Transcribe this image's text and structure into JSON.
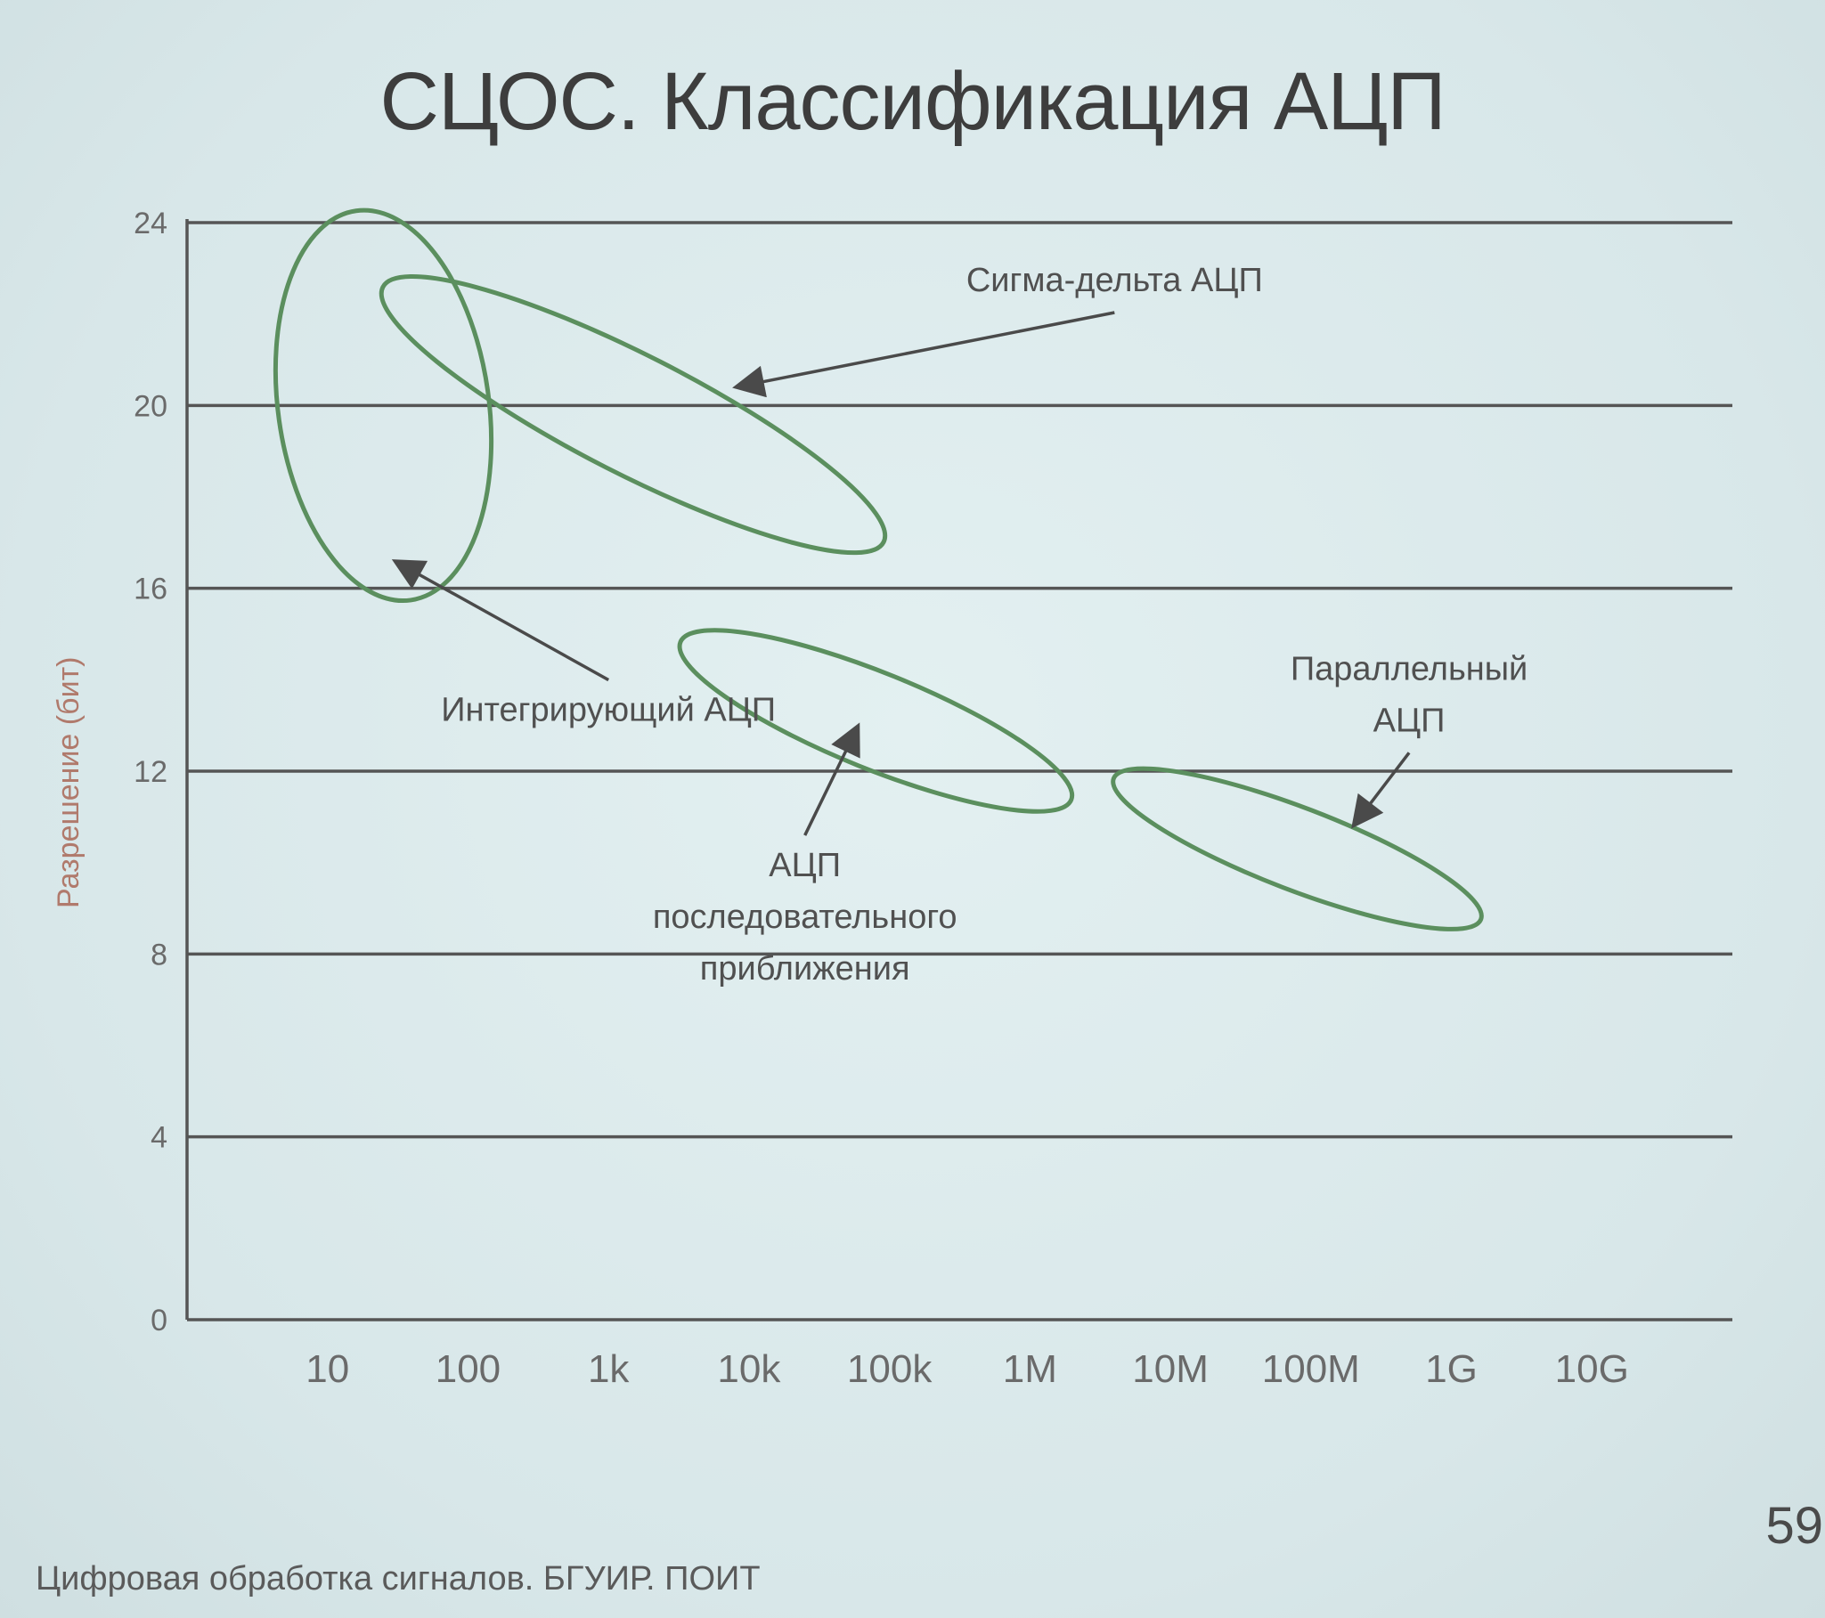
{
  "slide": {
    "title": "СЦОС. Классификация АЦП",
    "footer": "Цифровая обработка сигналов. БГУИР. ПОИТ",
    "page_number": "59"
  },
  "chart_data": {
    "type": "scatter",
    "title": "",
    "xlabel": "",
    "ylabel": "Разрешение (бит)",
    "x_scale": "log",
    "x_ticks": [
      "10",
      "100",
      "1k",
      "10k",
      "100k",
      "1M",
      "10M",
      "100M",
      "1G",
      "10G"
    ],
    "x_tick_values": [
      10,
      100,
      1000,
      10000,
      100000,
      1000000,
      10000000,
      100000000,
      1000000000,
      10000000000
    ],
    "xlim": [
      1,
      100000000000
    ],
    "y_ticks": [
      "0",
      "4",
      "8",
      "12",
      "16",
      "20",
      "24"
    ],
    "ylim": [
      0,
      24
    ],
    "grid": "horizontal",
    "ellipse_color": "#5b8f5e",
    "regions": [
      {
        "label": "Интегрирующий АЦП",
        "cx": 25,
        "cy": 20,
        "rx_decades": 0.75,
        "ry": 4.3,
        "angle": -8
      },
      {
        "label": "Сигма-дельта АЦП",
        "cx": 1500,
        "cy": 19.8,
        "rx_decades": 2.0,
        "ry": 1.3,
        "angle": 27
      },
      {
        "label": "АЦП последовательного приближения",
        "cx": 80000,
        "cy": 13.1,
        "rx_decades": 1.5,
        "ry": 1.05,
        "angle": 22
      },
      {
        "label": "Параллельный АЦП",
        "cx": 80000000,
        "cy": 10.3,
        "rx_decades": 1.4,
        "ry": 0.9,
        "angle": 21
      }
    ],
    "annotations": [
      {
        "lines": [
          "Сигма-дельта АЦП"
        ],
        "text_x": 4000000,
        "text_y": 22.5,
        "anchor": "middle",
        "arrow_to_x": 8000,
        "arrow_to_y": 20.4
      },
      {
        "lines": [
          "Интегрирующий АЦП"
        ],
        "text_x": 1000,
        "text_y": 13.1,
        "anchor": "middle",
        "arrow_to_x": 30,
        "arrow_to_y": 16.6
      },
      {
        "lines": [
          "АЦП",
          "последовательного",
          "приближения"
        ],
        "text_x": 25000,
        "text_y": 9.7,
        "anchor": "middle",
        "arrow_to_x": 60000,
        "arrow_to_y": 13.0
      },
      {
        "lines": [
          "Параллельный",
          "АЦП"
        ],
        "text_x": 500000000,
        "text_y": 14.0,
        "anchor": "middle",
        "arrow_to_x": 200000000,
        "arrow_to_y": 10.8
      }
    ]
  }
}
